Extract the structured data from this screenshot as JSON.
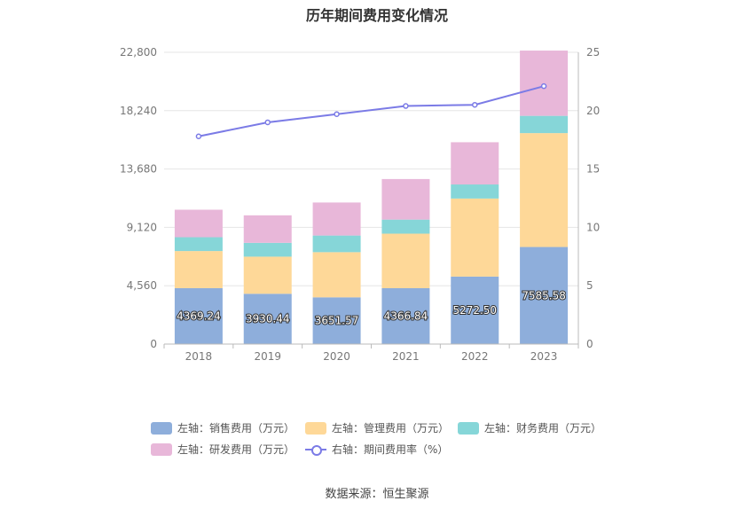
{
  "chart_data": {
    "type": "bar",
    "title": "历年期间费用变化情况",
    "categories": [
      "2018",
      "2019",
      "2020",
      "2021",
      "2022",
      "2023"
    ],
    "stacked": true,
    "left_axis": {
      "ylim": [
        0,
        22800
      ],
      "ticks": [
        "0",
        "4,560",
        "9,120",
        "13,680",
        "18,240",
        "22,800"
      ]
    },
    "right_axis": {
      "ylim": [
        0,
        25
      ],
      "ticks": [
        "0",
        "5",
        "10",
        "15",
        "20",
        "25"
      ]
    },
    "series": [
      {
        "name": "左轴：销售费用（万元）",
        "axis": "left",
        "type": "bar",
        "color": "#8eaedb",
        "values": [
          4369.24,
          3930.44,
          3651.57,
          4366.84,
          5272.5,
          7585.58
        ],
        "labels": [
          "4369.24",
          "3930.44",
          "3651.57",
          "4366.84",
          "5272.50",
          "7585.58"
        ]
      },
      {
        "name": "左轴：管理费用（万元）",
        "axis": "left",
        "type": "bar",
        "color": "#fed898",
        "values": [
          2900,
          2900,
          3530,
          4260,
          6100,
          8900
        ]
      },
      {
        "name": "左轴：财务费用（万元）",
        "axis": "left",
        "type": "bar",
        "color": "#86d6d8",
        "values": [
          1080,
          1080,
          1300,
          1100,
          1100,
          1350
        ]
      },
      {
        "name": "左轴：研发费用（万元）",
        "axis": "left",
        "type": "bar",
        "color": "#e8b7d9",
        "values": [
          2150,
          2150,
          2580,
          3170,
          3300,
          5100
        ]
      },
      {
        "name": "右轴：期间费用率（%）",
        "axis": "right",
        "type": "line",
        "color": "#7b7be6",
        "values": [
          17.8,
          19.0,
          19.7,
          20.4,
          20.5,
          22.1
        ]
      }
    ],
    "grid": true,
    "legend_position": "bottom"
  },
  "source_text": "数据来源：恒生聚源"
}
